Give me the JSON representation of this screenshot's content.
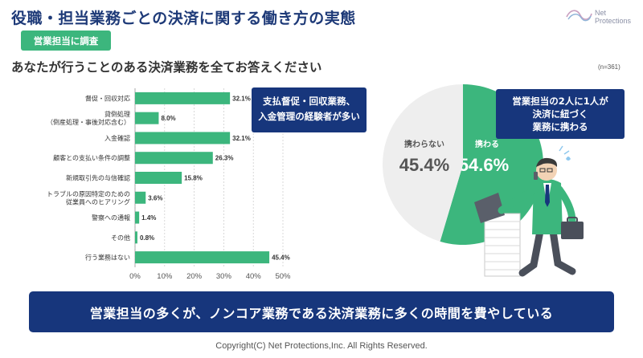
{
  "header": {
    "title": "役職・担当業務ごとの決済に関する働き方の実態",
    "logo_text": "Net Protections"
  },
  "tag_label": "営業担当に調査",
  "question": "あなたが行うことのある決済業務を全てお答えください",
  "n_note": "(n=361)",
  "callouts": {
    "bar": [
      "支払督促・回収業務、",
      "入金管理の経験者が多い"
    ],
    "pie": [
      "営業担当の2人に1人が",
      "決済に紐づく",
      "業務に携わる"
    ]
  },
  "banner": "営業担当の多くが、ノンコア業務である決済業務に多くの時間を費やしている",
  "copyright": "Copyright(C) Net Protections,Inc. All Rights Reserved.",
  "colors": {
    "green": "#3cb67d",
    "navy": "#17367c",
    "gray": "#eeeeee",
    "title": "#1e3a78"
  },
  "chart_data": [
    {
      "type": "bar",
      "orientation": "horizontal",
      "categories": [
        "督促・回収対応",
        "貸倒処理\n（倒産処理・事後対応含む）",
        "入金確認",
        "顧客との支払い条件の調整",
        "新規取引先の与信確認",
        "トラブルの原因特定のための\n従業員へのヒアリング",
        "警察への通報",
        "その他",
        "行う業務はない"
      ],
      "values": [
        32.1,
        8.0,
        32.1,
        26.3,
        15.8,
        3.6,
        1.4,
        0.8,
        45.4
      ],
      "value_labels": [
        "32.1%",
        "8.0%",
        "32.1%",
        "26.3%",
        "15.8%",
        "3.6%",
        "1.4%",
        "0.8%",
        "45.4%"
      ],
      "xlim": [
        0,
        50
      ],
      "xticks": [
        "0%",
        "10%",
        "20%",
        "30%",
        "40%",
        "50%"
      ],
      "grid": true
    },
    {
      "type": "pie",
      "slices": [
        {
          "label": "携わる",
          "value": 54.6,
          "value_label": "54.6%",
          "color": "#3cb67d"
        },
        {
          "label": "携わらない",
          "value": 45.4,
          "value_label": "45.4%",
          "color": "#eeeeee"
        }
      ]
    }
  ]
}
